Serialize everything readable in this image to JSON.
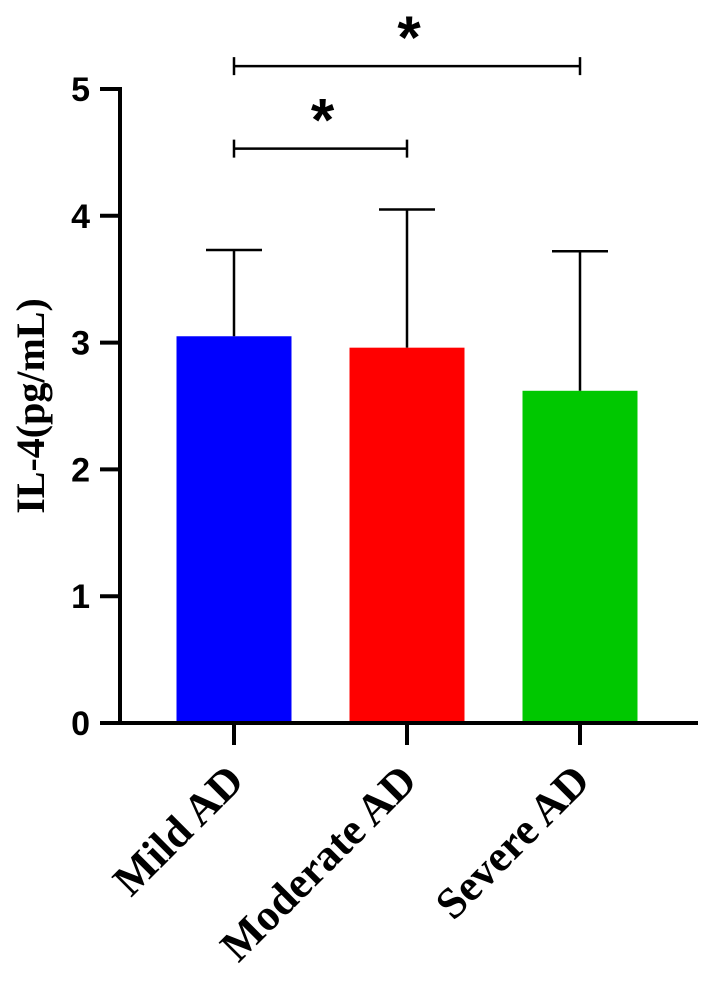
{
  "chart_data": {
    "type": "bar",
    "ylabel": "IL-4(pg/mL)",
    "xlabel": "",
    "ylim": [
      0,
      5
    ],
    "yticks": [
      0,
      1,
      2,
      3,
      4,
      5
    ],
    "ytick_labels": [
      "0",
      "1",
      "2",
      "3",
      "4",
      "5"
    ],
    "categories": [
      "Mild AD",
      "Moderate AD",
      "Severe AD"
    ],
    "values": [
      3.05,
      2.96,
      2.62
    ],
    "error_upper": [
      3.73,
      4.05,
      3.72
    ],
    "colors": [
      "#0000ff",
      "#ff0000",
      "#00c800"
    ],
    "grid": false,
    "legend": "none",
    "significance": [
      {
        "from": 0,
        "to": 1,
        "y": 4.53,
        "label": "*"
      },
      {
        "from": 0,
        "to": 2,
        "y": 5.18,
        "label": "*"
      }
    ]
  }
}
